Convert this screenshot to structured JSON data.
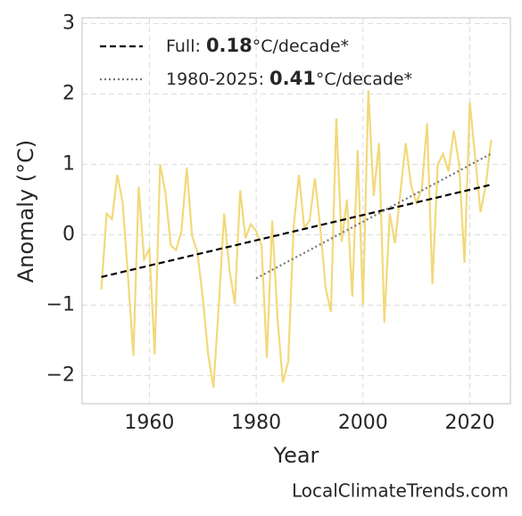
{
  "chart_data": {
    "type": "line",
    "xlabel": "Year",
    "ylabel": "Anomaly (°C)",
    "watermark": "LocalClimateTrends.com",
    "xlim": [
      1947.4,
      2027.6
    ],
    "ylim": [
      -2.4,
      3.08
    ],
    "xticks": [
      1960,
      1980,
      2000,
      2020
    ],
    "yticks": [
      {
        "value": -2,
        "label": "−2"
      },
      {
        "value": -1,
        "label": "−1"
      },
      0,
      1,
      2,
      3
    ],
    "grid": true,
    "legend": "upper left",
    "series": [
      {
        "color": "#f2d97a",
        "style": "solid",
        "x": [
          1951,
          1952,
          1953,
          1954,
          1955,
          1956,
          1957,
          1958,
          1959,
          1960,
          1961,
          1962,
          1963,
          1964,
          1965,
          1966,
          1967,
          1968,
          1969,
          1970,
          1971,
          1972,
          1973,
          1974,
          1975,
          1976,
          1977,
          1978,
          1979,
          1980,
          1981,
          1982,
          1983,
          1984,
          1985,
          1986,
          1987,
          1988,
          1989,
          1990,
          1991,
          1992,
          1993,
          1994,
          1995,
          1996,
          1997,
          1998,
          1999,
          2000,
          2001,
          2002,
          2003,
          2004,
          2005,
          2006,
          2007,
          2008,
          2009,
          2010,
          2011,
          2012,
          2013,
          2014,
          2015,
          2016,
          2017,
          2018,
          2019,
          2020,
          2021,
          2022,
          2023,
          2024
        ],
        "values": [
          -0.78,
          0.3,
          0.22,
          0.85,
          0.45,
          -0.6,
          -1.72,
          0.68,
          -0.35,
          -0.2,
          -1.7,
          1.0,
          0.6,
          -0.15,
          -0.22,
          0.05,
          0.95,
          -0.02,
          -0.25,
          -0.9,
          -1.7,
          -2.17,
          -1.0,
          0.3,
          -0.5,
          -0.98,
          0.63,
          -0.05,
          0.15,
          0.05,
          -0.15,
          -1.75,
          0.2,
          -1.2,
          -2.1,
          -1.8,
          0.1,
          0.85,
          0.1,
          0.2,
          0.8,
          0.1,
          -0.75,
          -1.1,
          1.65,
          -0.1,
          0.5,
          -0.88,
          1.2,
          -1.0,
          2.05,
          0.55,
          1.3,
          -1.25,
          0.3,
          -0.12,
          0.6,
          1.3,
          0.7,
          0.45,
          0.65,
          1.58,
          -0.7,
          1.0,
          1.15,
          0.9,
          1.48,
          1.0,
          -0.4,
          1.88,
          1.1,
          0.32,
          0.7,
          1.35
        ]
      },
      {
        "name_prefix": "Full: ",
        "rate": 0.18,
        "name_suffix": "°C/decade*",
        "color": "#000000",
        "style": "dashed",
        "x": [
          1951,
          2024
        ],
        "values": [
          -0.6,
          0.71
        ]
      },
      {
        "name_prefix": "1980-2025: ",
        "rate": 0.41,
        "name_suffix": "°C/decade*",
        "color": "#777777",
        "style": "dotted",
        "x": [
          1980,
          2024
        ],
        "values": [
          -0.62,
          1.15
        ]
      }
    ]
  }
}
